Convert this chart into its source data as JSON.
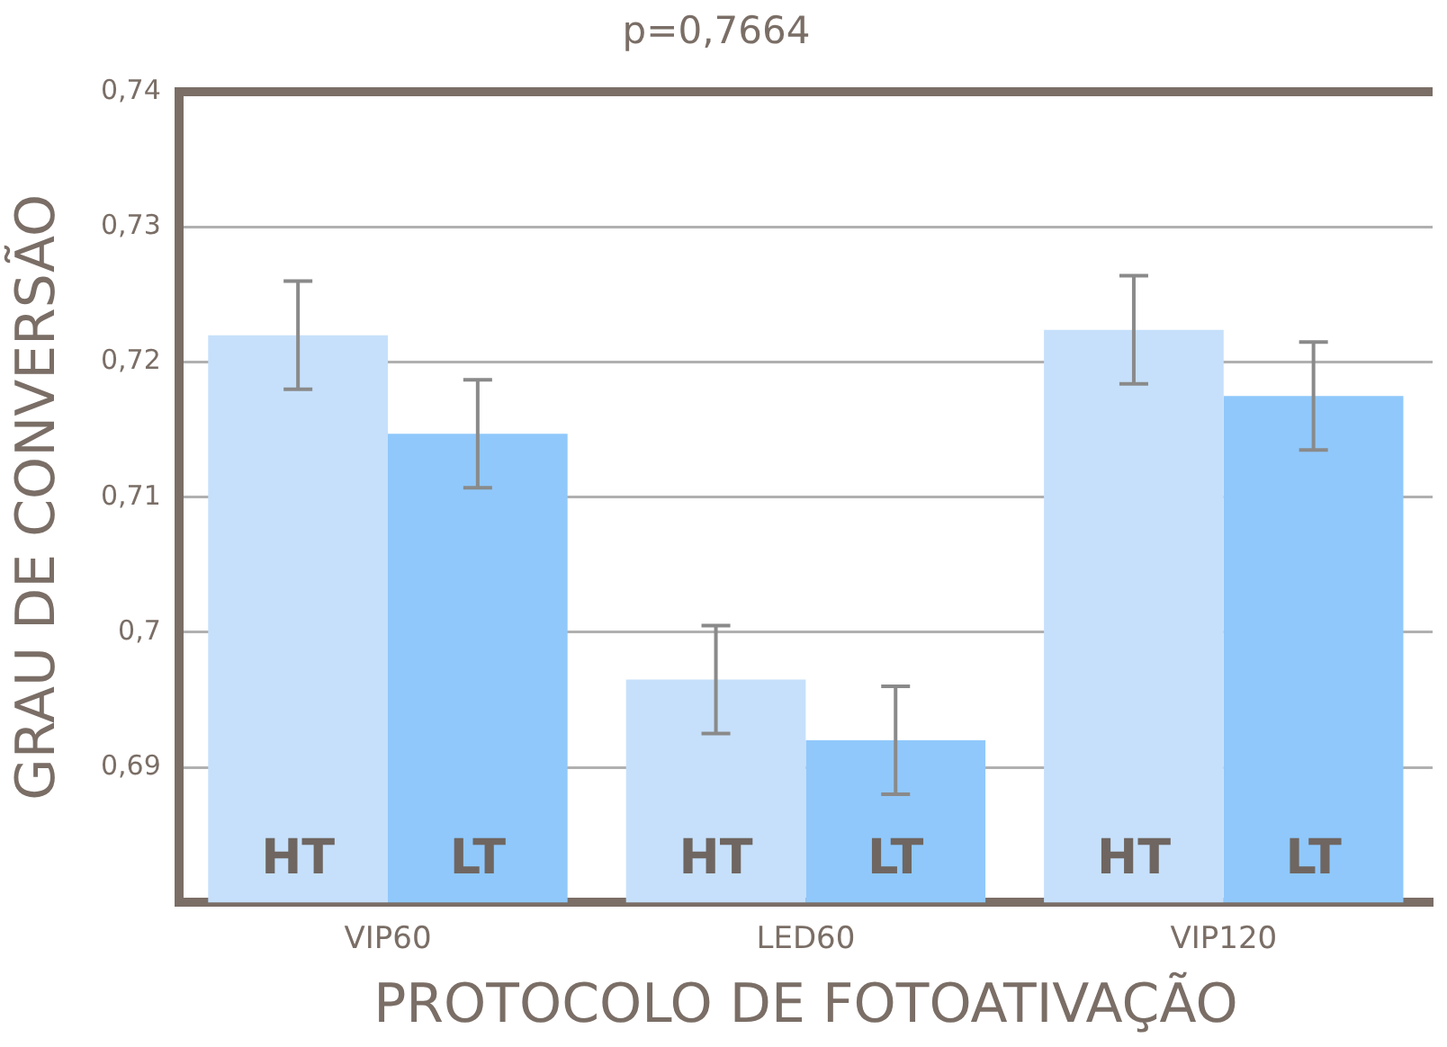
{
  "chart_data": {
    "type": "bar",
    "title": "p=0,7664",
    "xlabel": "PROTOCOLO DE FOTOATIVAÇÃO",
    "ylabel": "GRAU DE CONVERSÃO",
    "categories": [
      "VIP60",
      "LED60",
      "VIP120"
    ],
    "series": [
      {
        "name": "HT",
        "color": "#c6e0fb",
        "values": [
          0.722,
          0.6965,
          0.7224
        ],
        "errors": [
          0.004,
          0.004,
          0.004
        ]
      },
      {
        "name": "LT",
        "color": "#90c8fb",
        "values": [
          0.7147,
          0.692,
          0.7175
        ],
        "errors": [
          0.004,
          0.004,
          0.004
        ]
      }
    ],
    "ylim": [
      0.68,
      0.74
    ],
    "yticks": [
      {
        "value": 0.69,
        "label": "0,69"
      },
      {
        "value": 0.7,
        "label": "0,7"
      },
      {
        "value": 0.71,
        "label": "0,71"
      },
      {
        "value": 0.72,
        "label": "0,72"
      },
      {
        "value": 0.73,
        "label": "0,73"
      },
      {
        "value": 0.74,
        "label": "0,74"
      }
    ],
    "grid": "y",
    "legend": false
  }
}
